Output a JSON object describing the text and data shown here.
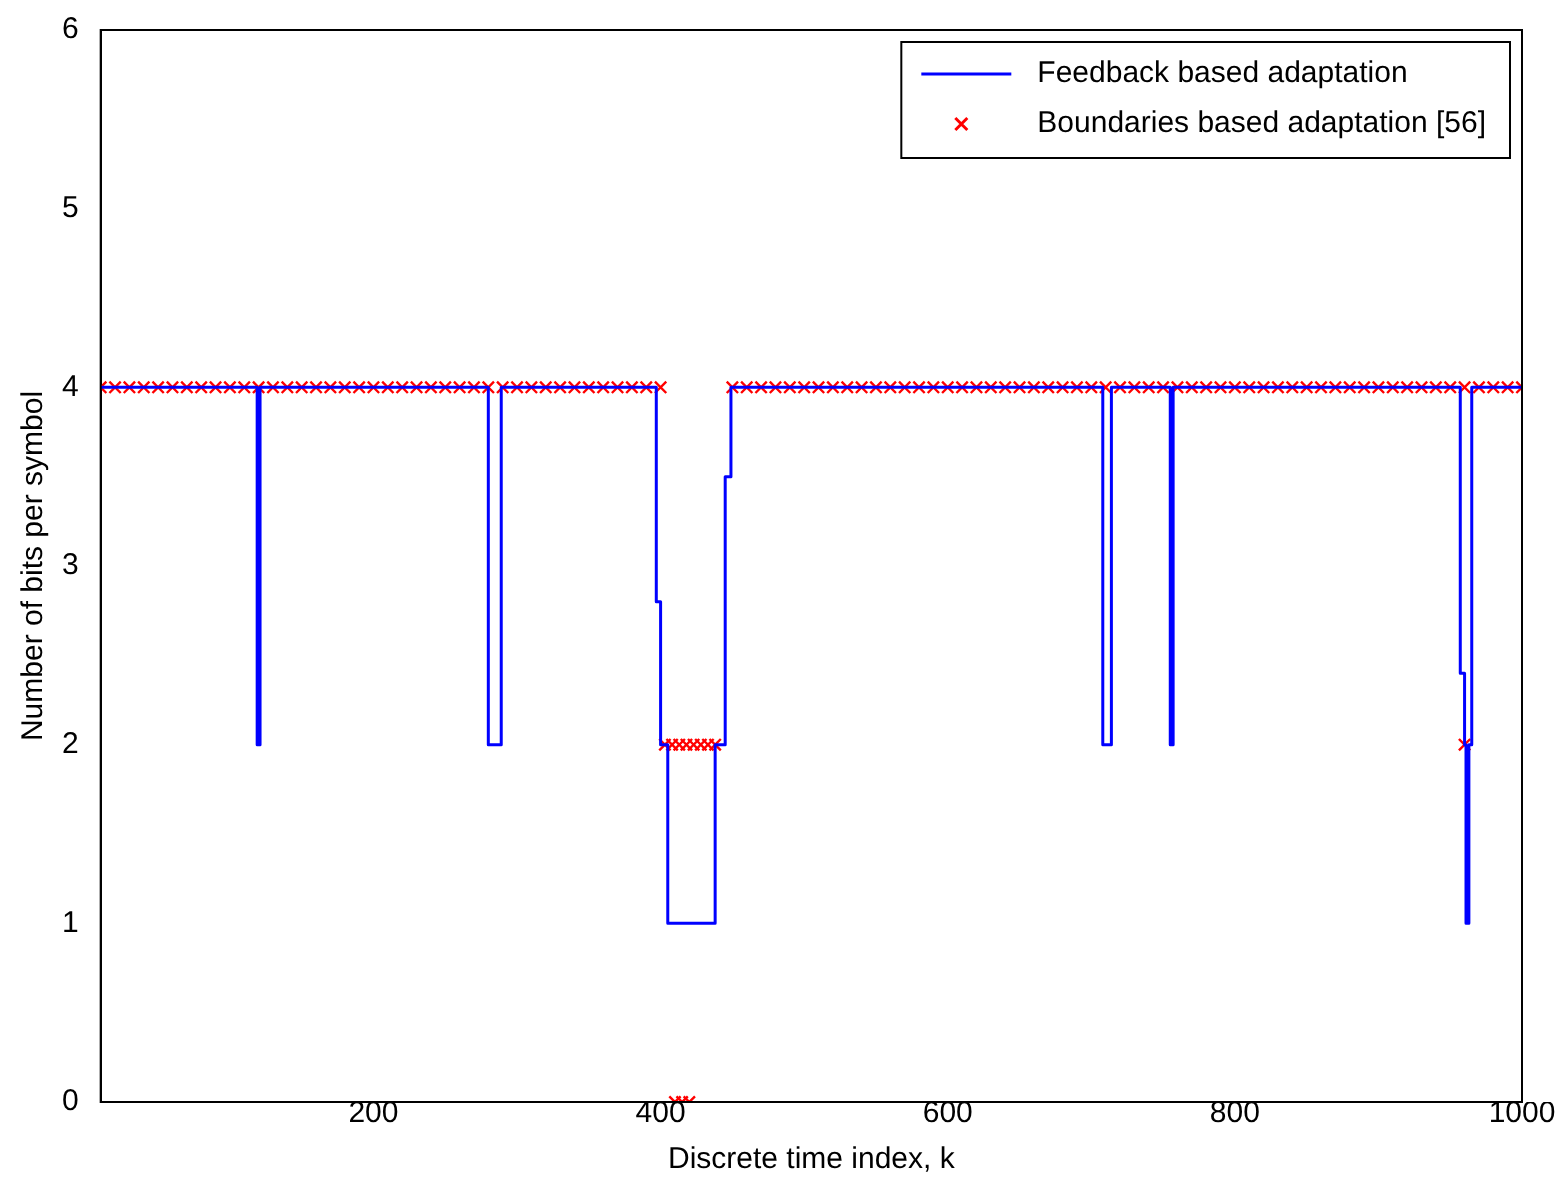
{
  "chart_data": {
    "type": "step",
    "xlabel": "Discrete time index, k",
    "ylabel": "Number of bits per symbol",
    "xlim": [
      10,
      1000
    ],
    "ylim": [
      0,
      6
    ],
    "xticks": [
      200,
      400,
      600,
      800,
      1000
    ],
    "yticks": [
      0,
      1,
      2,
      3,
      4,
      5,
      6
    ],
    "grid": false,
    "legend": "top right",
    "series": [
      {
        "name": "Feedback based adaptation",
        "color": "#0000ff",
        "marker": "none",
        "x": [
          10,
          119,
          121,
          280,
          289,
          397,
          400,
          405,
          438,
          445,
          449,
          708,
          714,
          755,
          757,
          957,
          960,
          961,
          963,
          965,
          1000
        ],
        "values": [
          4,
          2,
          4,
          2,
          4,
          2.8,
          2,
          1,
          2,
          3.5,
          4,
          2,
          4,
          2,
          4,
          2.4,
          2,
          1,
          2,
          4,
          4
        ]
      },
      {
        "name": "Boundaries based adaptation [56]",
        "type": "scatter",
        "color": "#ff0000",
        "marker": "cross",
        "x": [
          10,
          20,
          30,
          40,
          50,
          60,
          70,
          80,
          90,
          100,
          110,
          120,
          130,
          140,
          150,
          160,
          170,
          180,
          190,
          200,
          210,
          220,
          230,
          240,
          250,
          260,
          270,
          280,
          290,
          300,
          310,
          320,
          330,
          340,
          350,
          360,
          370,
          380,
          390,
          400,
          403,
          408,
          413,
          418,
          423,
          428,
          433,
          438,
          410,
          415,
          420,
          450,
          460,
          470,
          480,
          490,
          500,
          510,
          520,
          530,
          540,
          550,
          560,
          570,
          580,
          590,
          600,
          610,
          620,
          630,
          640,
          650,
          660,
          670,
          680,
          690,
          700,
          710,
          720,
          730,
          740,
          750,
          760,
          770,
          780,
          790,
          800,
          810,
          820,
          830,
          840,
          850,
          860,
          870,
          880,
          890,
          900,
          910,
          920,
          930,
          940,
          950,
          960,
          960,
          970,
          980,
          990,
          1000
        ],
        "values": [
          4,
          4,
          4,
          4,
          4,
          4,
          4,
          4,
          4,
          4,
          4,
          4,
          4,
          4,
          4,
          4,
          4,
          4,
          4,
          4,
          4,
          4,
          4,
          4,
          4,
          4,
          4,
          4,
          4,
          4,
          4,
          4,
          4,
          4,
          4,
          4,
          4,
          4,
          4,
          4,
          2,
          2,
          2,
          2,
          2,
          2,
          2,
          2,
          0,
          0,
          0,
          4,
          4,
          4,
          4,
          4,
          4,
          4,
          4,
          4,
          4,
          4,
          4,
          4,
          4,
          4,
          4,
          4,
          4,
          4,
          4,
          4,
          4,
          4,
          4,
          4,
          4,
          4,
          4,
          4,
          4,
          4,
          4,
          4,
          4,
          4,
          4,
          4,
          4,
          4,
          4,
          4,
          4,
          4,
          4,
          4,
          4,
          4,
          4,
          4,
          4,
          4,
          4,
          2,
          4,
          4,
          4,
          4
        ]
      }
    ]
  }
}
